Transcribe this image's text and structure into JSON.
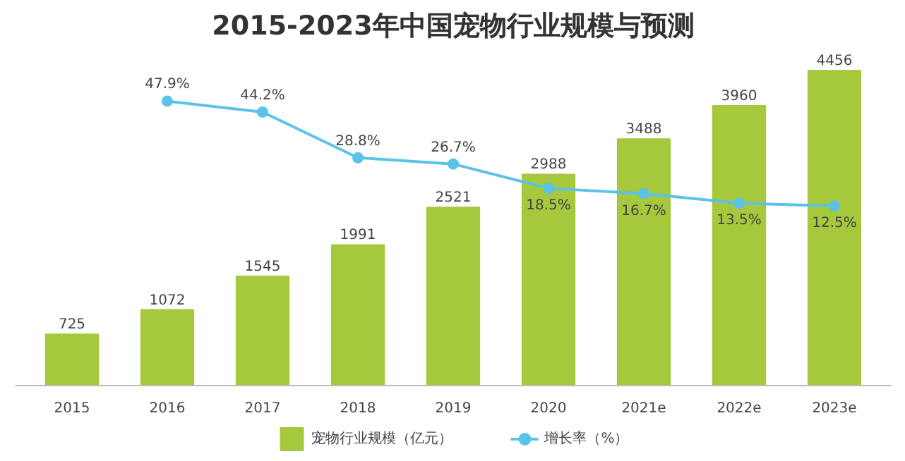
{
  "chart_data": {
    "type": "bar",
    "title": "2015-2023年中国宠物行业规模与预测",
    "categories": [
      "2015",
      "2016",
      "2017",
      "2018",
      "2019",
      "2020",
      "2021e",
      "2022e",
      "2023e"
    ],
    "series": [
      {
        "name": "宠物行业规模（亿元）",
        "color": "#a5c83c",
        "values": [
          725,
          1072,
          1545,
          1991,
          2521,
          2988,
          3488,
          3960,
          4456
        ]
      },
      {
        "name": "增长率（%）",
        "type": "line",
        "axis": "y2",
        "color": "#5bc3e8",
        "values": [
          null,
          47.9,
          44.2,
          28.8,
          26.7,
          18.5,
          16.7,
          13.5,
          12.5
        ],
        "value_labels": [
          null,
          "47.9%",
          "44.2%",
          "28.8%",
          "26.7%",
          "18.5%",
          "16.7%",
          "13.5%",
          "12.5%"
        ]
      }
    ],
    "data_labels": true,
    "legend": "bottom",
    "marker": "circle",
    "tick_labels": "x"
  }
}
